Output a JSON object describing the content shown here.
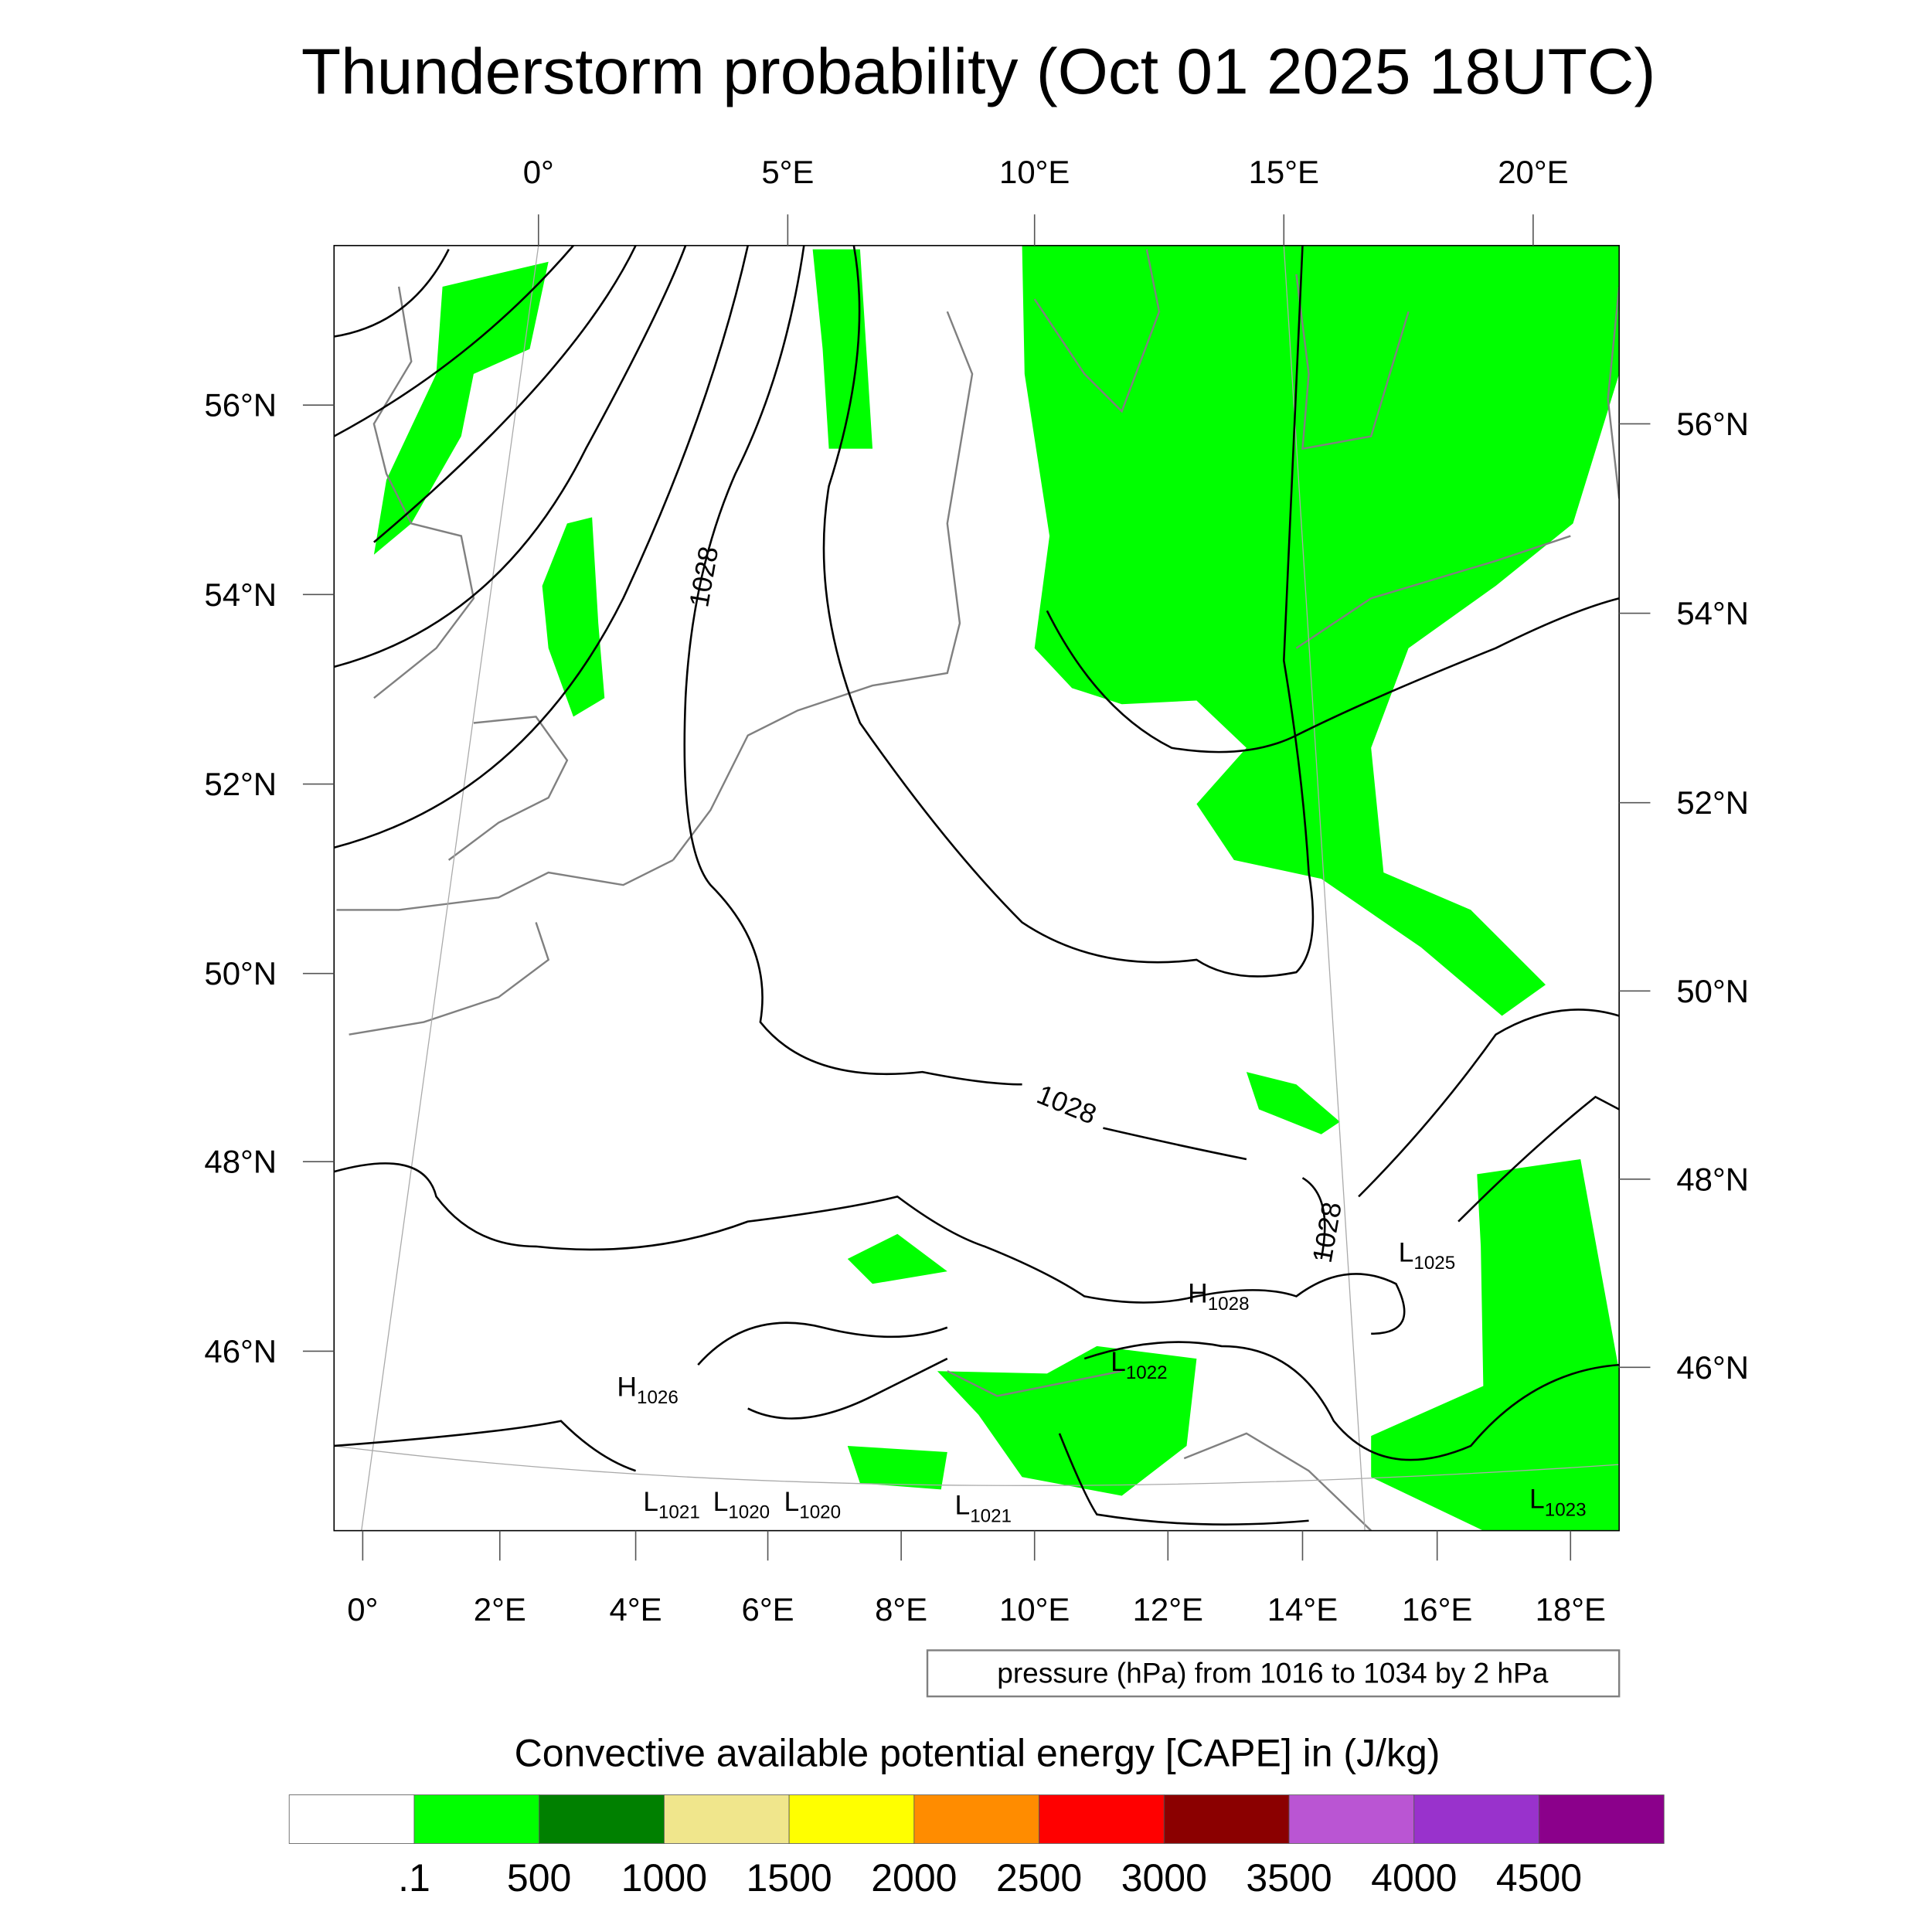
{
  "title": "Thunderstorm probability (Oct 01 2025 18UTC)",
  "top_lon_labels": [
    "0°",
    "5°E",
    "10°E",
    "15°E",
    "20°E"
  ],
  "bottom_lon_labels": [
    "0°",
    "2°E",
    "4°E",
    "6°E",
    "8°E",
    "10°E",
    "12°E",
    "14°E",
    "16°E",
    "18°E"
  ],
  "left_lat_labels": [
    "56°N",
    "54°N",
    "52°N",
    "50°N",
    "48°N",
    "46°N"
  ],
  "right_lat_labels": [
    "56°N",
    "54°N",
    "52°N",
    "50°N",
    "48°N",
    "46°N"
  ],
  "contour_labels": [
    "1028",
    "1028",
    "1028"
  ],
  "pressure_centers": [
    {
      "type": "H",
      "value": "1028"
    },
    {
      "type": "H",
      "value": "1026"
    },
    {
      "type": "L",
      "value": "1025"
    },
    {
      "type": "L",
      "value": "1022"
    },
    {
      "type": "L",
      "value": "1021"
    },
    {
      "type": "L",
      "value": "1020"
    },
    {
      "type": "L",
      "value": "1020"
    },
    {
      "type": "L",
      "value": "1021"
    },
    {
      "type": "L",
      "value": "1023"
    }
  ],
  "contour_info": "pressure (hPa) from 1016 to 1034 by 2 hPa",
  "colorbar": {
    "title": "Convective available potential energy [CAPE] in (J/kg)",
    "colors": [
      "#ffffff",
      "#00ff00",
      "#008000",
      "#f0e68c",
      "#ffff00",
      "#ff8c00",
      "#ff0000",
      "#8b0000",
      "#ba55d3",
      "#9932cc",
      "#8b008b"
    ],
    "labels": [
      ".1",
      "500",
      "1000",
      "1500",
      "2000",
      "2500",
      "3000",
      "3500",
      "4000",
      "4500"
    ]
  }
}
